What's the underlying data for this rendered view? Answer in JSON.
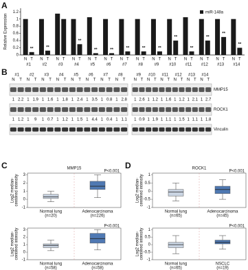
{
  "panel_labels": [
    "A",
    "B",
    "C",
    "D"
  ],
  "chart_data": [
    {
      "type": "bar",
      "y_label": "Relative Expression",
      "categories": [
        "#1",
        "#2",
        "#3",
        "#4",
        "#5",
        "#6",
        "#7",
        "#8",
        "#9",
        "#10",
        "#11",
        "#12",
        "#13",
        "#14"
      ],
      "group_labels": [
        "N",
        "T"
      ],
      "series": [
        {
          "name": "miR-148a",
          "color": "#1a1a1a",
          "values": [
            [
              1.0,
              0.08
            ],
            [
              1.0,
              0.12
            ],
            [
              1.15,
              1.0
            ],
            [
              1.0,
              0.3
            ],
            [
              1.05,
              0.05
            ],
            [
              1.0,
              0.05
            ],
            [
              1.0,
              0.1
            ],
            [
              1.0,
              0.1
            ],
            [
              1.0,
              0.1
            ],
            [
              1.0,
              0.4
            ],
            [
              1.05,
              0.1
            ],
            [
              1.0,
              0.4
            ],
            [
              1.0,
              0.5
            ],
            [
              1.0,
              0.2
            ]
          ]
        }
      ],
      "annotations": [
        "**",
        "**",
        null,
        "**",
        "**",
        "**",
        "**",
        "**",
        "**",
        "**",
        "**",
        "**",
        "**",
        "**"
      ],
      "ylim": [
        0,
        1.3
      ],
      "yticks": [
        0,
        0.2,
        0.4,
        0.6,
        0.8,
        1,
        1.2
      ]
    },
    {
      "type": "box",
      "title": "MMP15",
      "annotation": "P<0.001",
      "y_label": [
        "Log2 median-",
        "centered intensity"
      ],
      "categories": [
        "Normal lung",
        "Adenocarcinoma"
      ],
      "n_labels": [
        "(n=20)",
        "(n=226)"
      ],
      "colors": [
        "#c9d4e2",
        "#4f79b3"
      ],
      "boxes": [
        {
          "min": -0.3,
          "q1": 0.1,
          "median": 0.3,
          "q3": 0.6,
          "max": 1.0
        },
        {
          "min": 0.2,
          "q1": 1.2,
          "median": 1.6,
          "q3": 2.2,
          "max": 3.0
        }
      ],
      "ylim": [
        -1,
        3.2
      ],
      "yticks": [
        -1,
        0,
        1,
        2,
        3
      ]
    },
    {
      "type": "box",
      "annotation": "P<0.001",
      "y_label": [
        "Log2 median-",
        "centered intensity"
      ],
      "categories": [
        "Normal lung",
        "Adenocarcinoma"
      ],
      "n_labels": [
        "(n=58)",
        "(n=58)"
      ],
      "colors": [
        "#c9d4e2",
        "#4f79b3"
      ],
      "boxes": [
        {
          "min": 0.2,
          "q1": 0.6,
          "median": 0.9,
          "q3": 1.1,
          "max": 1.6
        },
        {
          "min": 0.3,
          "q1": 1.2,
          "median": 1.8,
          "q3": 2.5,
          "max": 3.0
        }
      ],
      "ylim": [
        -1,
        3.2
      ],
      "yticks": [
        -1,
        0,
        1,
        2,
        3
      ]
    },
    {
      "type": "box",
      "title": "ROCK1",
      "annotation": "P<0.001",
      "y_label": [
        "Log2 median-",
        "centered intensity"
      ],
      "categories": [
        "Normal lung",
        "Adenocarcinoma"
      ],
      "n_labels": [
        "(n=65)",
        "(n=45)"
      ],
      "colors": [
        "#c9d4e2",
        "#4f79b3"
      ],
      "boxes": [
        {
          "min": -0.6,
          "q1": -0.3,
          "median": -0.05,
          "q3": 0.1,
          "max": 0.5
        },
        {
          "min": -0.5,
          "q1": -0.15,
          "median": 0.1,
          "q3": 0.3,
          "max": 0.7
        }
      ],
      "ylim": [
        -1,
        1.1
      ],
      "yticks": [
        -1,
        -0.5,
        0,
        0.5,
        1
      ]
    },
    {
      "type": "box",
      "annotation": "P<0.001",
      "y_label": [
        "Log2 median-",
        "centered intensity"
      ],
      "categories": [
        "Normal lung",
        "NSCLC"
      ],
      "n_labels": [
        "(n=65)",
        "(n=19)"
      ],
      "colors": [
        "#c9d4e2",
        "#4f79b3"
      ],
      "boxes": [
        {
          "min": -0.6,
          "q1": -0.2,
          "median": 0,
          "q3": 0.15,
          "max": 0.6
        },
        {
          "min": -0.3,
          "q1": 0.05,
          "median": 0.15,
          "q3": 0.3,
          "max": 0.6
        }
      ],
      "ylim": [
        -1,
        1.1
      ],
      "yticks": [
        -1,
        -0.5,
        0,
        0.5,
        1
      ]
    }
  ],
  "blot": {
    "samples": [
      "#1",
      "#2",
      "#3",
      "#4",
      "#5",
      "#6",
      "#7",
      "#8",
      "#9",
      "#10",
      "#11",
      "#12",
      "#13",
      "#14"
    ],
    "lane_labels": [
      "N",
      "T"
    ],
    "rows": [
      {
        "name": "MMP15",
        "ratios": [
          [
            1,
            2.2
          ],
          [
            1,
            1.9
          ],
          [
            1,
            1.6
          ],
          [
            1,
            1.8
          ],
          [
            1,
            2.4
          ],
          [
            1,
            3.5
          ],
          [
            1,
            0.8
          ],
          [
            1,
            2.8
          ],
          [
            1,
            2.6
          ],
          [
            1,
            1.2
          ],
          [
            1,
            1.6
          ],
          [
            1,
            1.2
          ],
          [
            1,
            2.1
          ],
          [
            1,
            2.7
          ]
        ]
      },
      {
        "name": "ROCK1",
        "ratios": [
          [
            1,
            1.2
          ],
          [
            1,
            9.0
          ],
          [
            1,
            0.7
          ],
          [
            1,
            1.2
          ],
          [
            1,
            1.5
          ],
          [
            1,
            4.4
          ],
          [
            1,
            0.4
          ],
          [
            1,
            1.1
          ],
          [
            1,
            0.9
          ],
          [
            1,
            1.9
          ],
          [
            1,
            1.1
          ],
          [
            1,
            1.5
          ],
          [
            1,
            1.1
          ],
          [
            1,
            1.8
          ]
        ]
      },
      {
        "name": "Vinculin"
      }
    ]
  }
}
